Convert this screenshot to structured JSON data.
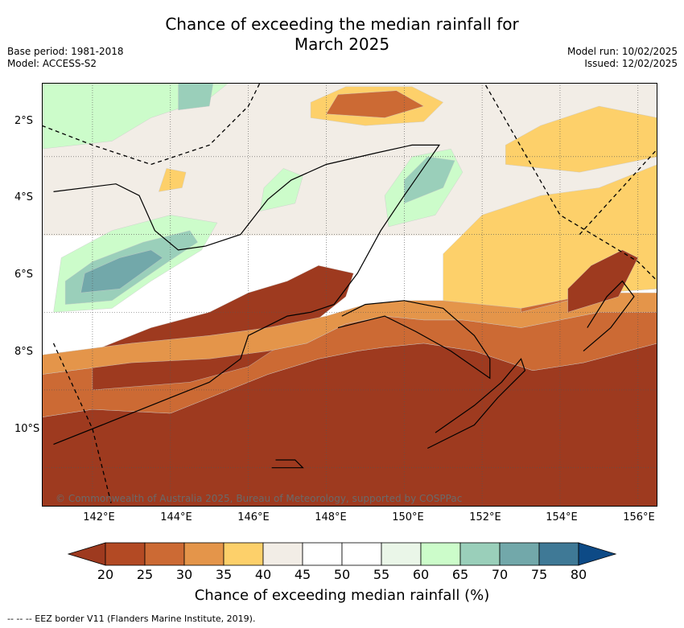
{
  "title_line1": "Chance of exceeding the median rainfall for",
  "title_line2": "March 2025",
  "base_period": "Base period: 1981-2018",
  "model": "Model: ACCESS-S2",
  "model_run": "Model run: 10/02/2025",
  "issued": "Issued: 12/02/2025",
  "copyright": "© Commonwealth of Australia 2025, Bureau of Meteorology, supported by COSPPac",
  "x_ticks": [
    "142°E",
    "144°E",
    "146°E",
    "148°E",
    "150°E",
    "152°E",
    "154°E",
    "156°E"
  ],
  "y_ticks": [
    "2°S",
    "4°S",
    "6°S",
    "8°S",
    "10°S"
  ],
  "colorbar": {
    "label": "Chance of exceeding median rainfall (%)",
    "ticks": [
      "20",
      "25",
      "30",
      "35",
      "40",
      "45",
      "50",
      "55",
      "60",
      "65",
      "70",
      "75",
      "80"
    ],
    "colors": [
      "#9e3a1f",
      "#b34a24",
      "#cc6a34",
      "#e4954a",
      "#fdd06a",
      "#f2ede6",
      "#ffffff",
      "#ffffff",
      "#eaf6e8",
      "#ccfcca",
      "#9acfba",
      "#72a8aa",
      "#3f7996",
      "#0d4a86"
    ]
  },
  "footnote": "--  --  -- EEZ border V11 (Flanders Marine Institute, 2019).",
  "map_data": {
    "lon_range": [
      140.7,
      156.5
    ],
    "lat_range": [
      -11.9,
      -1.0
    ],
    "regions": [
      {
        "name": "north-dry",
        "color": "#9e3a1f",
        "pts": [
          [
            140.7,
            -1.0
          ],
          [
            156.5,
            -1.0
          ],
          [
            156.5,
            -5.2
          ],
          [
            154.6,
            -4.7
          ],
          [
            153.3,
            -4.5
          ],
          [
            151.8,
            -5.0
          ],
          [
            150.5,
            -5.2
          ],
          [
            149.5,
            -5.1
          ],
          [
            148.8,
            -5.0
          ],
          [
            147.8,
            -4.8
          ],
          [
            146.5,
            -4.4
          ],
          [
            145.5,
            -4.0
          ],
          [
            144.0,
            -3.4
          ],
          [
            142.0,
            -3.5
          ],
          [
            140.7,
            -3.3
          ]
        ]
      },
      {
        "name": "orange-band",
        "color": "#cc6a34",
        "pts": [
          [
            140.7,
            -3.3
          ],
          [
            142.0,
            -3.5
          ],
          [
            144.0,
            -3.4
          ],
          [
            145.5,
            -4.0
          ],
          [
            146.5,
            -4.4
          ],
          [
            147.8,
            -4.8
          ],
          [
            148.8,
            -5.0
          ],
          [
            149.5,
            -5.1
          ],
          [
            150.5,
            -5.2
          ],
          [
            151.8,
            -5.0
          ],
          [
            153.3,
            -4.5
          ],
          [
            154.6,
            -4.7
          ],
          [
            156.5,
            -5.2
          ],
          [
            156.5,
            -6.0
          ],
          [
            155.0,
            -6.0
          ],
          [
            153.0,
            -5.6
          ],
          [
            151.5,
            -5.8
          ],
          [
            150.5,
            -5.8
          ],
          [
            149.5,
            -5.9
          ],
          [
            148.5,
            -5.7
          ],
          [
            147.5,
            -5.2
          ],
          [
            146.5,
            -5.0
          ],
          [
            145.0,
            -4.8
          ],
          [
            143.0,
            -4.7
          ],
          [
            140.7,
            -4.4
          ]
        ]
      },
      {
        "name": "brown-core-png",
        "color": "#9e3a1f",
        "pts": [
          [
            142.0,
            -4.0
          ],
          [
            144.5,
            -4.2
          ],
          [
            146.0,
            -4.6
          ],
          [
            147.5,
            -5.6
          ],
          [
            148.5,
            -6.4
          ],
          [
            148.7,
            -7.0
          ],
          [
            147.8,
            -7.2
          ],
          [
            147.0,
            -6.8
          ],
          [
            146.0,
            -6.5
          ],
          [
            145.0,
            -6.0
          ],
          [
            143.5,
            -5.6
          ],
          [
            142.0,
            -5.0
          ]
        ]
      },
      {
        "name": "light-orange-band",
        "color": "#e4954a",
        "pts": [
          [
            140.7,
            -4.4
          ],
          [
            143.0,
            -4.7
          ],
          [
            145.0,
            -4.8
          ],
          [
            146.5,
            -5.0
          ],
          [
            147.5,
            -5.2
          ],
          [
            148.5,
            -5.7
          ],
          [
            149.5,
            -5.9
          ],
          [
            150.5,
            -5.8
          ],
          [
            151.5,
            -5.8
          ],
          [
            153.0,
            -5.6
          ],
          [
            155.0,
            -6.0
          ],
          [
            156.5,
            -6.0
          ],
          [
            156.5,
            -6.5
          ],
          [
            155.0,
            -6.5
          ],
          [
            153.0,
            -6.1
          ],
          [
            151.5,
            -6.3
          ],
          [
            150.0,
            -6.3
          ],
          [
            149.0,
            -6.2
          ],
          [
            148.0,
            -5.9
          ],
          [
            146.5,
            -5.6
          ],
          [
            145.0,
            -5.4
          ],
          [
            143.0,
            -5.2
          ],
          [
            140.7,
            -4.9
          ]
        ]
      },
      {
        "name": "east-orange",
        "color": "#cc6a34",
        "pts": [
          [
            153.0,
            -6.0
          ],
          [
            155.0,
            -6.5
          ],
          [
            156.5,
            -6.6
          ],
          [
            156.5,
            -8.6
          ],
          [
            155.5,
            -8.2
          ],
          [
            154.5,
            -7.6
          ],
          [
            153.5,
            -7.2
          ],
          [
            153.0,
            -6.6
          ]
        ]
      },
      {
        "name": "east-yellow",
        "color": "#fdd06a",
        "pts": [
          [
            151.0,
            -6.3
          ],
          [
            153.0,
            -6.1
          ],
          [
            155.0,
            -6.5
          ],
          [
            156.5,
            -6.6
          ],
          [
            156.5,
            -9.8
          ],
          [
            155.0,
            -9.2
          ],
          [
            153.5,
            -9.0
          ],
          [
            152.0,
            -8.5
          ],
          [
            151.0,
            -7.5
          ]
        ]
      },
      {
        "name": "east-dark",
        "color": "#9e3a1f",
        "pts": [
          [
            154.2,
            -6.0
          ],
          [
            155.5,
            -6.4
          ],
          [
            156.0,
            -7.4
          ],
          [
            155.6,
            -7.6
          ],
          [
            154.8,
            -7.2
          ],
          [
            154.2,
            -6.6
          ]
        ]
      },
      {
        "name": "south-yellow",
        "color": "#fdd06a",
        "pts": [
          [
            152.6,
            -9.8
          ],
          [
            154.5,
            -9.6
          ],
          [
            156.5,
            -10.0
          ],
          [
            156.5,
            -11.0
          ],
          [
            155.0,
            -11.3
          ],
          [
            153.5,
            -10.8
          ],
          [
            152.6,
            -10.3
          ]
        ]
      },
      {
        "name": "south-orange-blob",
        "color": "#fdd06a",
        "pts": [
          [
            147.6,
            -11.0
          ],
          [
            149.0,
            -10.8
          ],
          [
            150.5,
            -10.9
          ],
          [
            151.0,
            -11.4
          ],
          [
            150.2,
            -11.8
          ],
          [
            148.5,
            -11.8
          ],
          [
            147.6,
            -11.4
          ]
        ]
      },
      {
        "name": "south-orange-core",
        "color": "#cc6a34",
        "pts": [
          [
            148.0,
            -11.1
          ],
          [
            149.5,
            -11.0
          ],
          [
            150.5,
            -11.3
          ],
          [
            149.8,
            -11.7
          ],
          [
            148.3,
            -11.6
          ]
        ]
      },
      {
        "name": "west-green",
        "color": "#ccfcca",
        "pts": [
          [
            141.0,
            -6.0
          ],
          [
            142.5,
            -6.1
          ],
          [
            143.5,
            -6.8
          ],
          [
            144.8,
            -7.6
          ],
          [
            145.2,
            -8.3
          ],
          [
            144.0,
            -8.5
          ],
          [
            142.5,
            -8.1
          ],
          [
            141.2,
            -7.4
          ]
        ]
      },
      {
        "name": "west-teal",
        "color": "#9acfba",
        "pts": [
          [
            141.3,
            -6.2
          ],
          [
            142.5,
            -6.3
          ],
          [
            143.8,
            -7.2
          ],
          [
            144.7,
            -7.8
          ],
          [
            144.5,
            -8.1
          ],
          [
            143.3,
            -7.8
          ],
          [
            142.0,
            -7.3
          ],
          [
            141.3,
            -6.8
          ]
        ]
      },
      {
        "name": "west-deep",
        "color": "#72a8aa",
        "pts": [
          [
            141.7,
            -6.5
          ],
          [
            142.7,
            -6.6
          ],
          [
            143.8,
            -7.4
          ],
          [
            143.5,
            -7.6
          ],
          [
            142.7,
            -7.4
          ],
          [
            141.8,
            -7.0
          ]
        ]
      },
      {
        "name": "se-green",
        "color": "#ccfcca",
        "pts": [
          [
            149.6,
            -8.2
          ],
          [
            150.8,
            -8.5
          ],
          [
            151.5,
            -9.6
          ],
          [
            151.2,
            -10.2
          ],
          [
            150.2,
            -10.0
          ],
          [
            149.5,
            -9.0
          ]
        ]
      },
      {
        "name": "se-teal",
        "color": "#9acfba",
        "pts": [
          [
            150.0,
            -8.8
          ],
          [
            151.0,
            -9.2
          ],
          [
            151.3,
            -9.9
          ],
          [
            150.6,
            -10.0
          ],
          [
            150.0,
            -9.4
          ]
        ]
      },
      {
        "name": "mid-green",
        "color": "#ccfcca",
        "pts": [
          [
            146.3,
            -8.6
          ],
          [
            147.2,
            -8.8
          ],
          [
            147.4,
            -9.5
          ],
          [
            146.9,
            -9.7
          ],
          [
            146.4,
            -9.2
          ]
        ]
      },
      {
        "name": "sw-green",
        "color": "#ccfcca",
        "pts": [
          [
            140.7,
            -10.2
          ],
          [
            142.5,
            -10.4
          ],
          [
            143.5,
            -11.0
          ],
          [
            145.0,
            -11.5
          ],
          [
            145.5,
            -11.9
          ],
          [
            140.7,
            -11.9
          ]
        ]
      },
      {
        "name": "sw-teal",
        "color": "#9acfba",
        "pts": [
          [
            144.2,
            -11.2
          ],
          [
            145.0,
            -11.3
          ],
          [
            145.1,
            -11.9
          ],
          [
            144.2,
            -11.9
          ]
        ]
      },
      {
        "name": "yellow-patch-w",
        "color": "#fdd06a",
        "pts": [
          [
            143.7,
            -9.1
          ],
          [
            144.3,
            -9.2
          ],
          [
            144.4,
            -9.6
          ],
          [
            143.9,
            -9.7
          ]
        ]
      }
    ],
    "coastlines": [
      {
        "name": "png-mainland",
        "pts": [
          [
            141.0,
            -2.6
          ],
          [
            142.5,
            -3.2
          ],
          [
            144.0,
            -3.8
          ],
          [
            145.0,
            -4.2
          ],
          [
            145.8,
            -4.8
          ],
          [
            146.0,
            -5.4
          ],
          [
            147.0,
            -5.9
          ],
          [
            147.6,
            -6.0
          ],
          [
            148.2,
            -6.2
          ],
          [
            148.8,
            -7.0
          ],
          [
            149.4,
            -8.1
          ],
          [
            150.0,
            -9.0
          ],
          [
            150.9,
            -10.3
          ],
          [
            150.2,
            -10.3
          ],
          [
            149.3,
            -10.1
          ],
          [
            148.0,
            -9.8
          ],
          [
            147.1,
            -9.4
          ],
          [
            146.5,
            -8.9
          ],
          [
            145.8,
            -8.0
          ],
          [
            144.9,
            -7.7
          ],
          [
            144.2,
            -7.6
          ],
          [
            143.6,
            -8.1
          ],
          [
            143.2,
            -9.0
          ],
          [
            142.6,
            -9.3
          ],
          [
            141.0,
            -9.1
          ]
        ]
      },
      {
        "name": "new-britain",
        "pts": [
          [
            148.3,
            -5.6
          ],
          [
            149.5,
            -5.9
          ],
          [
            150.3,
            -5.5
          ],
          [
            151.2,
            -5.0
          ],
          [
            152.2,
            -4.3
          ],
          [
            152.2,
            -4.8
          ],
          [
            151.8,
            -5.4
          ],
          [
            151.0,
            -6.1
          ],
          [
            150.0,
            -6.3
          ],
          [
            149.0,
            -6.2
          ],
          [
            148.4,
            -5.9
          ]
        ]
      },
      {
        "name": "new-ireland",
        "pts": [
          [
            150.6,
            -2.5
          ],
          [
            151.8,
            -3.1
          ],
          [
            152.4,
            -3.8
          ],
          [
            153.1,
            -4.5
          ],
          [
            153.0,
            -4.8
          ],
          [
            152.5,
            -4.2
          ],
          [
            151.8,
            -3.6
          ],
          [
            150.8,
            -2.9
          ]
        ]
      },
      {
        "name": "bougainville",
        "pts": [
          [
            154.6,
            -5.0
          ],
          [
            155.3,
            -5.6
          ],
          [
            155.9,
            -6.4
          ],
          [
            155.6,
            -6.8
          ],
          [
            155.2,
            -6.4
          ],
          [
            154.7,
            -5.6
          ]
        ]
      },
      {
        "name": "manus",
        "pts": [
          [
            146.6,
            -2.0
          ],
          [
            147.4,
            -2.0
          ],
          [
            147.2,
            -2.2
          ],
          [
            146.7,
            -2.2
          ]
        ]
      }
    ],
    "eez": [
      {
        "name": "eez-north",
        "pts": [
          [
            141.0,
            -5.2
          ],
          [
            142.0,
            -3.0
          ],
          [
            142.5,
            -1.0
          ]
        ]
      },
      {
        "name": "eez-south",
        "pts": [
          [
            140.7,
            -10.8
          ],
          [
            142.0,
            -10.3
          ],
          [
            143.5,
            -9.8
          ],
          [
            145.0,
            -10.3
          ],
          [
            146.0,
            -11.3
          ],
          [
            146.3,
            -11.9
          ]
        ]
      },
      {
        "name": "eez-east",
        "pts": [
          [
            152.0,
            -12.0
          ],
          [
            154.0,
            -8.5
          ],
          [
            156.0,
            -7.3
          ],
          [
            156.5,
            -6.8
          ]
        ]
      },
      {
        "name": "eez-se",
        "pts": [
          [
            154.5,
            -8.0
          ],
          [
            156.5,
            -10.2
          ]
        ]
      }
    ]
  }
}
